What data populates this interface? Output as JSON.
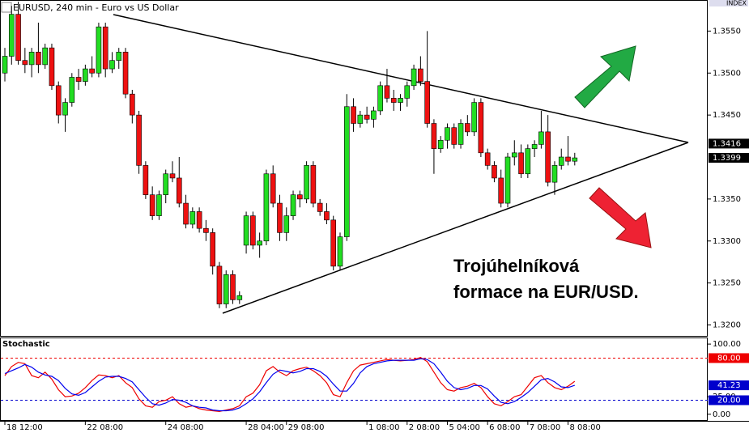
{
  "chart_data": [
    {
      "type": "candlestick",
      "title": "EURUSD, 240 min - Euro vs US Dollar",
      "corner_label": "INDEX",
      "annotation": [
        "Trojúhelníková",
        "formace na EUR/USD."
      ],
      "up_color": "#22dd22",
      "down_color": "#ee1111",
      "categories": [
        "18 12:00",
        null,
        null,
        null,
        null,
        null,
        null,
        null,
        null,
        null,
        null,
        null,
        "22 08:00",
        null,
        null,
        null,
        null,
        null,
        null,
        null,
        null,
        null,
        null,
        null,
        "24 08:00",
        null,
        null,
        null,
        null,
        null,
        null,
        null,
        null,
        null,
        null,
        null,
        "28 04:00",
        null,
        null,
        null,
        null,
        null,
        "29 08:00",
        null,
        null,
        null,
        null,
        null,
        null,
        null,
        null,
        null,
        null,
        null,
        "1 08:00",
        null,
        null,
        null,
        null,
        null,
        "2 08:00",
        null,
        null,
        null,
        null,
        null,
        "5 04:00",
        null,
        null,
        null,
        null,
        null,
        "6 08:00",
        null,
        null,
        null,
        null,
        null,
        "7 08:00",
        null,
        null,
        null,
        null,
        null,
        "8 08:00",
        null
      ],
      "open": [
        1.35,
        1.352,
        1.357,
        1.3515,
        1.351,
        1.3525,
        1.351,
        1.353,
        1.3485,
        1.345,
        1.3465,
        1.3495,
        1.349,
        1.3505,
        1.35,
        1.3555,
        1.3505,
        1.3515,
        1.3525,
        1.3475,
        1.345,
        1.339,
        1.3355,
        1.333,
        1.3355,
        1.338,
        1.3375,
        1.3345,
        1.332,
        1.3335,
        1.3315,
        1.331,
        1.327,
        1.3225,
        1.326,
        1.323,
        1.3295,
        1.333,
        1.3295,
        1.33,
        1.338,
        1.3345,
        1.331,
        1.333,
        1.3355,
        1.335,
        1.339,
        1.3345,
        1.3335,
        1.3325,
        1.327,
        1.3305,
        1.346,
        1.344,
        1.345,
        1.3445,
        1.3455,
        1.3485,
        1.347,
        1.3465,
        1.347,
        1.3485,
        1.3505,
        1.349,
        1.344,
        1.341,
        1.342,
        1.3435,
        1.3415,
        1.344,
        1.343,
        1.3465,
        1.3405,
        1.339,
        1.3375,
        1.3345,
        1.34,
        1.3405,
        1.338,
        1.341,
        1.3415,
        1.343,
        1.337,
        1.339,
        1.34,
        1.3395
      ],
      "high": [
        1.353,
        1.358,
        1.3585,
        1.353,
        1.353,
        1.356,
        1.3535,
        1.3535,
        1.349,
        1.347,
        1.35,
        1.3505,
        1.351,
        1.352,
        1.356,
        1.356,
        1.3525,
        1.353,
        1.353,
        1.348,
        1.3455,
        1.3395,
        1.3365,
        1.336,
        1.3385,
        1.3395,
        1.34,
        1.3355,
        1.334,
        1.334,
        1.3325,
        1.3315,
        1.3275,
        1.3265,
        1.3265,
        1.324,
        1.3335,
        1.3335,
        1.331,
        1.3385,
        1.339,
        1.3355,
        1.334,
        1.336,
        1.336,
        1.3395,
        1.3395,
        1.335,
        1.3345,
        1.333,
        1.331,
        1.3475,
        1.347,
        1.3455,
        1.346,
        1.346,
        1.349,
        1.3505,
        1.348,
        1.3475,
        1.349,
        1.351,
        1.352,
        1.355,
        1.3445,
        1.3425,
        1.344,
        1.344,
        1.3445,
        1.345,
        1.347,
        1.347,
        1.341,
        1.3395,
        1.3385,
        1.3405,
        1.342,
        1.3415,
        1.3415,
        1.342,
        1.3455,
        1.345,
        1.3395,
        1.341,
        1.3425,
        1.3405
      ],
      "low": [
        1.349,
        1.351,
        1.351,
        1.35,
        1.3495,
        1.35,
        1.3505,
        1.348,
        1.344,
        1.343,
        1.346,
        1.348,
        1.3485,
        1.3495,
        1.3495,
        1.3495,
        1.35,
        1.3505,
        1.347,
        1.344,
        1.338,
        1.335,
        1.3325,
        1.3325,
        1.3345,
        1.337,
        1.334,
        1.3315,
        1.3315,
        1.331,
        1.33,
        1.326,
        1.322,
        1.322,
        1.3225,
        1.3225,
        1.3285,
        1.329,
        1.328,
        1.3295,
        1.334,
        1.33,
        1.33,
        1.3325,
        1.334,
        1.3345,
        1.334,
        1.333,
        1.332,
        1.3265,
        1.3265,
        1.33,
        1.343,
        1.3435,
        1.344,
        1.3435,
        1.345,
        1.3465,
        1.3455,
        1.3455,
        1.346,
        1.348,
        1.3485,
        1.3435,
        1.338,
        1.3405,
        1.341,
        1.341,
        1.341,
        1.3425,
        1.3425,
        1.34,
        1.3385,
        1.337,
        1.334,
        1.334,
        1.339,
        1.3375,
        1.3375,
        1.34,
        1.341,
        1.3365,
        1.3355,
        1.3385,
        1.339,
        1.339
      ],
      "close": [
        1.352,
        1.357,
        1.3515,
        1.351,
        1.3525,
        1.351,
        1.353,
        1.3485,
        1.345,
        1.3465,
        1.3495,
        1.349,
        1.3505,
        1.35,
        1.3555,
        1.3505,
        1.3515,
        1.3525,
        1.3475,
        1.345,
        1.339,
        1.3355,
        1.333,
        1.3355,
        1.338,
        1.3375,
        1.3345,
        1.332,
        1.3335,
        1.3315,
        1.331,
        1.327,
        1.3225,
        1.326,
        1.323,
        1.3235,
        1.333,
        1.3295,
        1.33,
        1.338,
        1.3345,
        1.331,
        1.333,
        1.3355,
        1.335,
        1.339,
        1.3345,
        1.3335,
        1.3325,
        1.327,
        1.3305,
        1.346,
        1.344,
        1.345,
        1.3445,
        1.3455,
        1.3485,
        1.347,
        1.3465,
        1.347,
        1.3485,
        1.3505,
        1.349,
        1.344,
        1.341,
        1.342,
        1.3435,
        1.3415,
        1.344,
        1.343,
        1.3465,
        1.3405,
        1.339,
        1.3375,
        1.3345,
        1.34,
        1.3405,
        1.338,
        1.341,
        1.3415,
        1.343,
        1.337,
        1.339,
        1.34,
        1.3395,
        1.3399
      ],
      "ylim": [
        1.3187,
        1.3587
      ],
      "yticks": [
        {
          "value": 1.355,
          "label": "1.3550"
        },
        {
          "value": 1.35,
          "label": "1.3500"
        },
        {
          "value": 1.345,
          "label": "1.3450"
        },
        {
          "value": 1.335,
          "label": "1.3350"
        },
        {
          "value": 1.33,
          "label": "1.3300"
        },
        {
          "value": 1.325,
          "label": "1.3250"
        },
        {
          "value": 1.32,
          "label": "1.3200"
        }
      ],
      "markers": [
        {
          "value": 1.3416,
          "color": "#000000"
        },
        {
          "value": 1.3399,
          "color": "#000000"
        }
      ]
    },
    {
      "type": "line",
      "title": "Stochastic",
      "ylim": [
        -9.4,
        108.2
      ],
      "yticks": [
        {
          "value": 100,
          "label": "100.00"
        },
        {
          "value": 25,
          "label": "25.00"
        },
        {
          "value": 0,
          "label": "0.00"
        }
      ],
      "levels": [
        {
          "value": 80,
          "label": "80.00",
          "color": "#ee0000"
        },
        {
          "value": 20,
          "label": "20.00",
          "color": "#0000cc"
        }
      ],
      "series": [
        {
          "color": "#ee0000",
          "values": [
            55,
            68,
            74,
            72,
            55,
            52,
            60,
            50,
            35,
            25,
            26,
            30,
            38,
            48,
            56,
            55,
            52,
            55,
            45,
            38,
            22,
            12,
            10,
            18,
            20,
            25,
            15,
            10,
            12,
            8,
            6,
            5,
            4,
            6,
            8,
            12,
            25,
            30,
            42,
            62,
            68,
            60,
            55,
            62,
            65,
            67,
            62,
            55,
            45,
            28,
            25,
            45,
            62,
            70,
            72,
            74,
            76,
            78,
            77,
            76,
            77,
            78,
            81,
            75,
            60,
            45,
            35,
            33,
            38,
            40,
            44,
            38,
            25,
            15,
            12,
            18,
            25,
            28,
            40,
            52,
            55,
            45,
            38,
            35,
            40,
            47
          ]
        },
        {
          "color": "#0000ee",
          "values": [
            58,
            62,
            66,
            71,
            67,
            60,
            56,
            54,
            48,
            37,
            29,
            27,
            31,
            39,
            47,
            53,
            54,
            54,
            51,
            46,
            35,
            24,
            15,
            13,
            16,
            21,
            20,
            17,
            12,
            10,
            9,
            6,
            5,
            5,
            6,
            9,
            15,
            22,
            32,
            45,
            57,
            63,
            61,
            59,
            61,
            65,
            65,
            61,
            54,
            43,
            33,
            33,
            44,
            59,
            68,
            72,
            74,
            76,
            77,
            77,
            77,
            77,
            79,
            78,
            72,
            60,
            47,
            38,
            35,
            37,
            41,
            41,
            36,
            26,
            17,
            15,
            18,
            24,
            31,
            40,
            49,
            51,
            46,
            39,
            38,
            41.23
          ]
        }
      ],
      "markers": [
        {
          "value": 41.23,
          "color": "#0000cc"
        }
      ]
    }
  ]
}
